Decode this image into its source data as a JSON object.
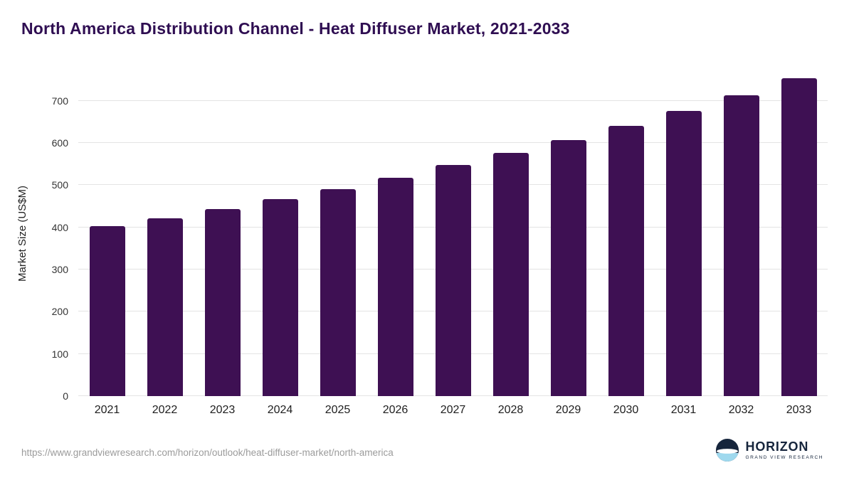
{
  "title": "North America Distribution Channel - Heat Diffuser Market, 2021-2033",
  "chart_data": {
    "type": "bar",
    "categories": [
      "2021",
      "2022",
      "2023",
      "2024",
      "2025",
      "2026",
      "2027",
      "2028",
      "2029",
      "2030",
      "2031",
      "2032",
      "2033"
    ],
    "values": [
      402,
      421,
      443,
      466,
      491,
      518,
      547,
      576,
      607,
      640,
      676,
      712,
      753
    ],
    "title": "North America Distribution Channel - Heat Diffuser Market, 2021-2033",
    "xlabel": "",
    "ylabel": "Market Size (US$M)",
    "ylim": [
      0,
      770
    ],
    "yticks": [
      0,
      100,
      200,
      300,
      400,
      500,
      600,
      700
    ],
    "grid": "horizontal",
    "legend": "none",
    "bar_color": "#3e1053"
  },
  "footer": {
    "source_url": "https://www.grandviewresearch.com/horizon/outlook/heat-diffuser-market/north-america",
    "logo_title": "HORIZON",
    "logo_subtitle": "GRAND VIEW RESEARCH"
  },
  "colors": {
    "bar": "#3e1053",
    "title": "#2f0e52",
    "gridline": "#e4e4e4",
    "axis_text": "#333333",
    "url_text": "#9b9b9b",
    "logo_navy": "#16253c",
    "logo_blue": "#9fd9ee"
  }
}
